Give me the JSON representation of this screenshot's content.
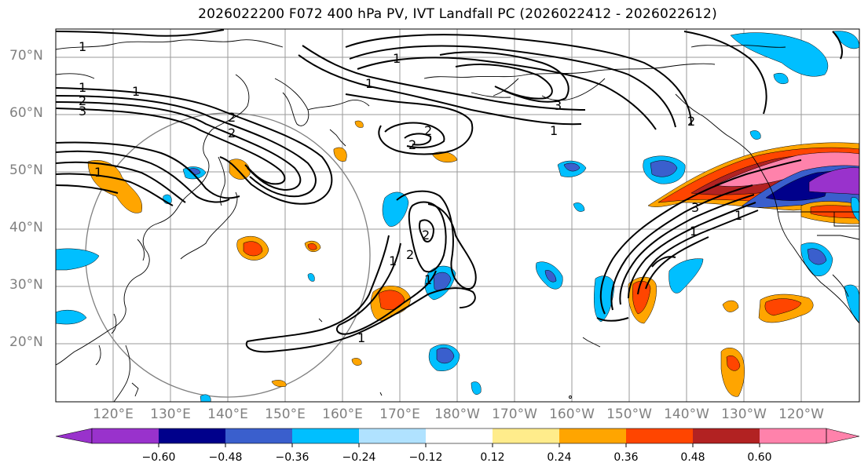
{
  "title": "2026022200 F072 400 hPa PV, IVT Landfall PC (2026022412 - 2026022612)",
  "lat_labels": [
    "70°N",
    "60°N",
    "50°N",
    "40°N",
    "30°N",
    "20°N"
  ],
  "lon_labels": [
    "120°E",
    "130°E",
    "140°E",
    "150°E",
    "160°E",
    "170°E",
    "180°W",
    "170°W",
    "160°W",
    "150°W",
    "140°W",
    "130°W",
    "120°W"
  ],
  "colorbar": {
    "ticks": [
      "−0.60",
      "−0.48",
      "−0.36",
      "−0.24",
      "−0.12",
      "0.12",
      "0.24",
      "0.36",
      "0.48",
      "0.60"
    ],
    "colors": [
      "#9932cc",
      "#00008b",
      "#3a5fcd",
      "#00bfff",
      "#b0e2ff",
      "#ffffff",
      "#ffec8b",
      "#ffa500",
      "#ff4500",
      "#b22222",
      "#ff82ab"
    ]
  },
  "contour_labels": [
    "1",
    "1",
    "2",
    "3",
    "1",
    "2",
    "2",
    "1",
    "1",
    "2",
    "3",
    "1",
    "2",
    "1",
    "2",
    "2",
    "1",
    "1",
    "2",
    "3",
    "1",
    "1",
    "1"
  ],
  "palette": {
    "orange": "#ffa500",
    "red_orange": "#ff4500",
    "dark_red": "#b22222",
    "pink": "#ff82ab",
    "yellow": "#ffec8b",
    "sky": "#00bfff",
    "royal": "#3a5fcd",
    "navy": "#00008b",
    "purple": "#9932cc"
  }
}
